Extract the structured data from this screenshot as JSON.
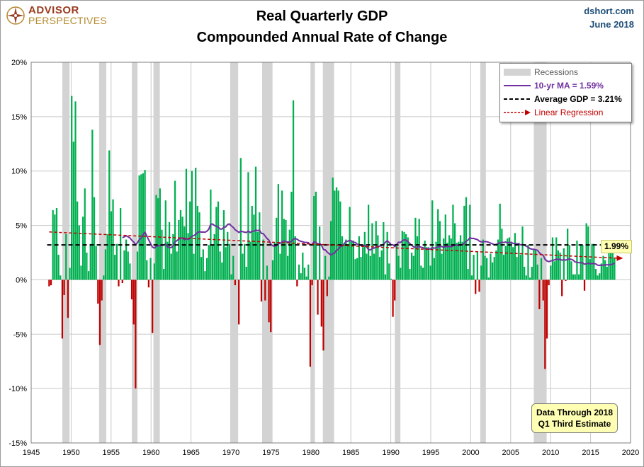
{
  "header": {
    "logo_line1": "ADVISOR",
    "logo_line2": "PERSPECTIVES",
    "title_line1": "Real Quarterly GDP",
    "title_line2": "Compounded Annual Rate of Change",
    "source": "dshort.com",
    "date": "June 2018"
  },
  "colors": {
    "positive": "#00b050",
    "negative": "#c00000",
    "ma": "#7030a0",
    "average": "#000000",
    "regression": "#c00000",
    "recession": "#d3d3d3",
    "grid": "#c8c8c8",
    "logo_red": "#9b3a1e",
    "logo_gold": "#b58a2e",
    "source_blue": "#1f4e79"
  },
  "legend": {
    "recessions": "Recessions",
    "ma": "10-yr MA = 1.59%",
    "average": "Average GDP = 3.21%",
    "regression": "Linear Regression"
  },
  "note": {
    "line1": "Data Through 2018",
    "line2": "Q1 Third Estimate"
  },
  "end_label": "1.99%",
  "chart_data": {
    "type": "bar",
    "title": "Real Quarterly GDP - Compounded Annual Rate of Change",
    "xlabel": "",
    "ylabel": "",
    "xlim": [
      1945,
      2020
    ],
    "ylim": [
      -15,
      20
    ],
    "x_ticks": [
      1945,
      1950,
      1955,
      1960,
      1965,
      1970,
      1975,
      1980,
      1985,
      1990,
      1995,
      2000,
      2005,
      2010,
      2015,
      2020
    ],
    "y_ticks": [
      -15,
      -10,
      -5,
      0,
      5,
      10,
      15,
      20
    ],
    "y_tick_labels": [
      "-15%",
      "-10%",
      "-5%",
      "0%",
      "5%",
      "10%",
      "15%",
      "20%"
    ],
    "average": 3.21,
    "regression": {
      "start": [
        1947.25,
        4.4
      ],
      "end": [
        2018.0,
        1.99
      ]
    },
    "recessions": [
      [
        1948.9,
        1949.8
      ],
      [
        1953.5,
        1954.4
      ],
      [
        1957.6,
        1958.3
      ],
      [
        1960.3,
        1961.1
      ],
      [
        1969.9,
        1970.9
      ],
      [
        1973.9,
        1975.2
      ],
      [
        1980.0,
        1980.5
      ],
      [
        1981.5,
        1982.9
      ],
      [
        1990.5,
        1991.2
      ],
      [
        2001.2,
        2001.9
      ],
      [
        2007.9,
        2009.5
      ]
    ],
    "gdp": [
      -0.6,
      -0.5,
      6.4,
      6.0,
      6.6,
      2.3,
      0.4,
      -5.4,
      -1.4,
      4.2,
      -3.5,
      1.1,
      16.9,
      12.7,
      16.4,
      7.2,
      5.0,
      1.3,
      5.8,
      8.4,
      2.5,
      0.8,
      3.3,
      13.8,
      7.6,
      3.1,
      -2.2,
      -6.0,
      -1.9,
      0.4,
      2.8,
      4.2,
      11.9,
      6.3,
      7.4,
      2.3,
      3.3,
      -0.6,
      6.6,
      -0.3,
      2.7,
      3.7,
      2.6,
      1.5,
      -1.8,
      -4.1,
      -10.0,
      2.6,
      9.6,
      9.7,
      9.8,
      10.1,
      1.8,
      -0.7,
      2.0,
      -4.9,
      1.5,
      7.8,
      7.5,
      8.4,
      4.6,
      1.0,
      7.3,
      3.5,
      5.3,
      2.4,
      4.2,
      9.1,
      2.6,
      5.5,
      6.4,
      5.8,
      4.9,
      10.2,
      4.3,
      7.2,
      10.0,
      2.4,
      10.3,
      6.8,
      6.2,
      2.1,
      2.8,
      0.8,
      2.0,
      3.2,
      8.3,
      3.2,
      4.2,
      6.7,
      7.2,
      2.6,
      1.6,
      6.4,
      3.0,
      4.4,
      3.3,
      0.5,
      2.2,
      -0.5,
      0.0,
      -4.1,
      11.2,
      2.4,
      3.3,
      1.2,
      9.9,
      3.5,
      6.8,
      6.0,
      10.4,
      4.4,
      6.2,
      -2.0,
      3.7,
      -1.9,
      1.3,
      -3.9,
      -4.8,
      1.8,
      3.4,
      5.7,
      8.8,
      2.4,
      8.2,
      5.6,
      5.5,
      2.2,
      4.6,
      8.1,
      16.5,
      4.0,
      -0.6,
      1.4,
      0.6,
      2.5,
      1.1,
      0.3,
      1.4,
      -8.0,
      -0.5,
      7.7,
      8.1,
      -3.2,
      4.9,
      -4.3,
      -6.5,
      2.2,
      -1.5,
      0.3,
      5.4,
      9.4,
      8.2,
      8.5,
      8.2,
      7.2,
      4.0,
      3.2,
      3.7,
      3.1,
      6.7,
      3.5,
      3.6,
      1.9,
      2.0,
      4.0,
      2.1,
      3.0,
      4.4,
      2.4,
      6.9,
      2.2,
      5.2,
      2.4,
      5.4,
      4.1,
      2.1,
      2.7,
      5.3,
      0.5,
      4.4,
      1.5,
      0.1,
      -3.4,
      -1.9,
      3.1,
      2.2,
      1.1,
      4.5,
      4.4,
      4.2,
      3.9,
      1.0,
      2.5,
      2.2,
      5.7,
      4.0,
      5.6,
      1.3,
      1.1,
      3.6,
      3.0,
      3.0,
      1.3,
      7.3,
      2.0,
      3.5,
      6.5,
      5.4,
      2.4,
      3.8,
      6.0,
      3.4,
      4.1,
      3.8,
      6.9,
      5.2,
      3.4,
      3.5,
      4.1,
      3.5,
      6.8,
      7.6,
      1.0,
      6.9,
      0.4,
      2.3,
      -1.3,
      2.6,
      -1.1,
      1.3,
      3.7,
      2.2,
      2.0,
      0.2,
      2.4,
      1.6,
      2.1,
      2.7,
      3.7,
      7.0,
      4.7,
      2.3,
      3.1,
      3.8,
      3.9,
      3.5,
      3.0,
      4.3,
      2.1,
      3.4,
      2.3,
      4.9,
      1.2,
      0.4,
      3.2,
      0.2,
      1.2,
      2.8,
      2.7,
      1.4,
      -2.7,
      2.0,
      -1.9,
      -8.2,
      -5.4,
      -0.5,
      1.3,
      3.9,
      1.7,
      3.9,
      2.7,
      2.5,
      -1.5,
      2.9,
      -0.1,
      4.7,
      3.2,
      1.7,
      0.5,
      0.5,
      3.6,
      0.5,
      3.2,
      3.2,
      -1.0,
      5.2,
      4.9,
      1.9,
      3.3,
      3.3,
      1.0,
      0.4,
      0.6,
      1.5,
      2.2,
      1.8,
      1.2,
      3.1,
      3.2,
      2.9,
      2.0
    ]
  }
}
